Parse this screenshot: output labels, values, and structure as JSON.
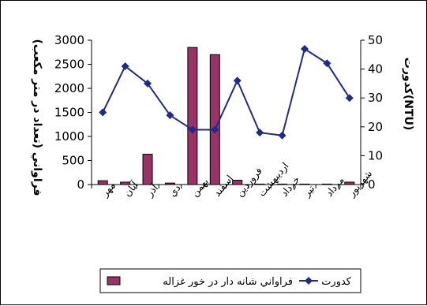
{
  "chart_data": {
    "type": "bar",
    "categories": [
      "مهر",
      "آبان",
      "آذر",
      "دي",
      "بهمن",
      "اسفند",
      "فروردين",
      "ارديبهشت",
      "خرداد",
      "تير",
      "مرداد",
      "شهريور"
    ],
    "series": [
      {
        "name": "فراواني شانه دار در خور غزاله",
        "type": "bar",
        "axis": "left",
        "color": "#993366",
        "values": [
          80,
          50,
          630,
          30,
          2850,
          2700,
          90,
          10,
          10,
          10,
          10,
          50
        ]
      },
      {
        "name": "كدورت",
        "type": "line",
        "axis": "right",
        "color": "#1f2a8c",
        "marker": "diamond",
        "values": [
          25,
          41,
          35,
          24,
          19,
          19,
          36,
          18,
          17,
          47,
          42,
          30
        ]
      }
    ],
    "ylabel_left": "فراواني (تعداد در متر مكعب)",
    "ylabel_right": "كدورت(NTU)",
    "ylim_left": [
      0,
      3000
    ],
    "ylim_right": [
      0,
      50
    ],
    "yticks_left": [
      "0",
      "500",
      "1000",
      "1500",
      "2000",
      "2500",
      "3000"
    ],
    "yticks_right": [
      "0",
      "10",
      "20",
      "30",
      "40",
      "50"
    ],
    "grid": false,
    "legend_position": "bottom"
  }
}
